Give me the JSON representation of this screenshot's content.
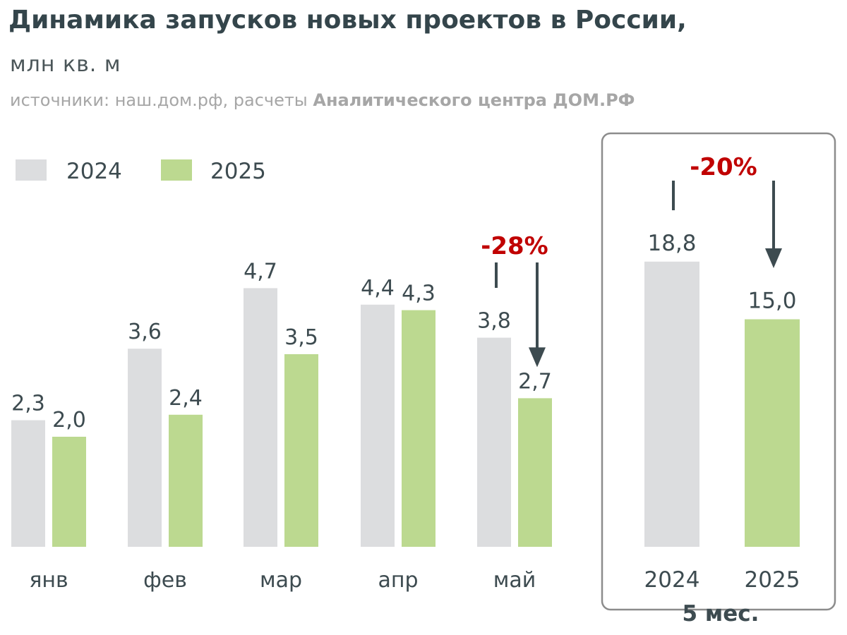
{
  "header": {
    "title": "Динамика запусков новых проектов в России,",
    "subtitle": "млн кв. м",
    "source_prefix": "источники: наш.дом.рф, расчеты ",
    "source_bold": "Аналитического центра ДОМ.РФ"
  },
  "colors": {
    "series_2024": "#dcdddf",
    "series_2025": "#bcd990",
    "annotation_red": "#c00000",
    "arrow": "#3d4b50",
    "text": "#3d4b50"
  },
  "chart_data": [
    {
      "type": "bar",
      "categories": [
        "янв",
        "фев",
        "мар",
        "апр",
        "май"
      ],
      "series": [
        {
          "name": "2024",
          "values": [
            2.3,
            3.6,
            4.7,
            4.4,
            3.8
          ],
          "labels": [
            "2,3",
            "3,6",
            "4,7",
            "4,4",
            "3,8"
          ]
        },
        {
          "name": "2025",
          "values": [
            2.0,
            2.4,
            3.5,
            4.3,
            2.7
          ],
          "labels": [
            "2,0",
            "2,4",
            "3,5",
            "4,3",
            "2,7"
          ]
        }
      ],
      "legend": {
        "position": "top-left",
        "entries": [
          "2024",
          "2025"
        ]
      },
      "annotation": {
        "category": "май",
        "text": "-28%"
      },
      "grid": false
    },
    {
      "type": "bar",
      "categories": [
        "2024",
        "2025"
      ],
      "values": [
        18.8,
        15.0
      ],
      "labels": [
        "18,8",
        "15,0"
      ],
      "xlabel": "5 мес.",
      "annotation": {
        "text": "-20%"
      },
      "grid": false
    }
  ]
}
